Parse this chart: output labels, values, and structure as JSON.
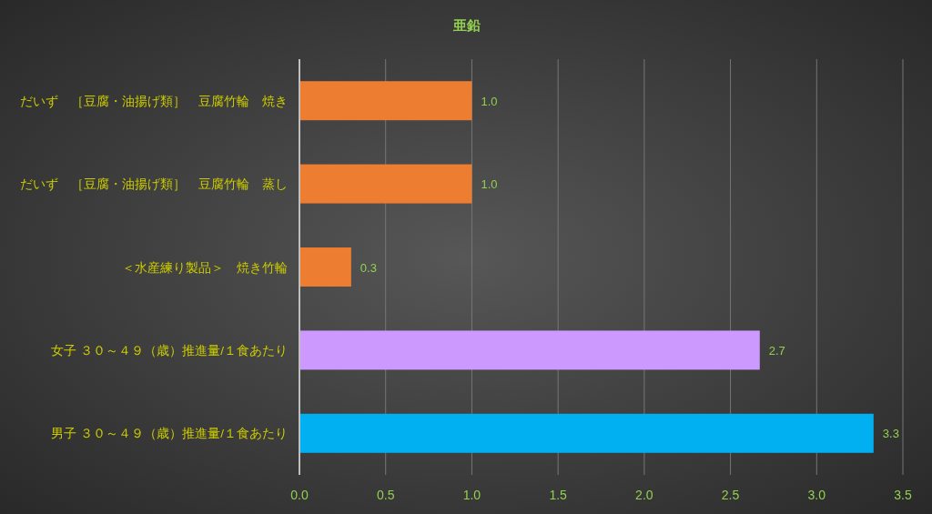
{
  "chart_data": {
    "type": "bar",
    "orientation": "horizontal",
    "title": "亜鉛",
    "categories": [
      "だいず　［豆腐・油揚げ類］　豆腐竹輪　焼き",
      "だいず　［豆腐・油揚げ類］　豆腐竹輪　蒸し",
      "＜水産練り製品＞　焼き竹輪",
      "女子 ３０～４９（歳）推進量/１食あたり",
      "男子 ３０～４９（歳）推進量/１食あたり"
    ],
    "values": [
      1.0,
      1.0,
      0.3,
      2.67,
      3.33
    ],
    "colors": [
      "#ed7d31",
      "#ed7d31",
      "#ed7d31",
      "#cc99ff",
      "#00b0f0"
    ],
    "value_labels": [
      "1.0",
      "1.0",
      "0.3",
      "2.7",
      "3.3"
    ],
    "xlim": [
      0,
      3.5
    ],
    "xticks": [
      {
        "value": 0,
        "label": "0.0"
      },
      0.5,
      {
        "value": 1,
        "label": "1.0"
      },
      1.5,
      {
        "value": 2,
        "label": "2.0"
      },
      2.5,
      {
        "value": 3,
        "label": "3.0"
      },
      3.5
    ],
    "grid": "x"
  }
}
